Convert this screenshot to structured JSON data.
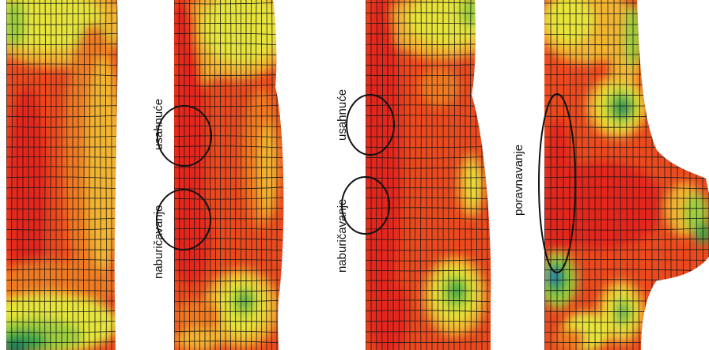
{
  "panels": [
    {
      "id": "panel-1",
      "labels": []
    },
    {
      "id": "panel-2",
      "labels": [
        {
          "text": "usahnuće"
        },
        {
          "text": "naburičavanje"
        }
      ]
    },
    {
      "id": "panel-3",
      "labels": [
        {
          "text": "usahnuće"
        },
        {
          "text": "naburičavanje"
        }
      ]
    },
    {
      "id": "panel-4",
      "labels": [
        {
          "text": "poravnavanje"
        }
      ]
    }
  ],
  "colors": {
    "background": "#ffffff",
    "red": "#e5261b",
    "orange_red": "#ec4a1e",
    "orange": "#f07a24",
    "yellow_orange": "#f2b531",
    "yellow": "#e6e43a",
    "yellow_green": "#9ccf3e",
    "green": "#3aa84a",
    "dark_green": "#1b7f5a",
    "blue": "#1f6fb8",
    "mesh": "#1a1a1a"
  }
}
